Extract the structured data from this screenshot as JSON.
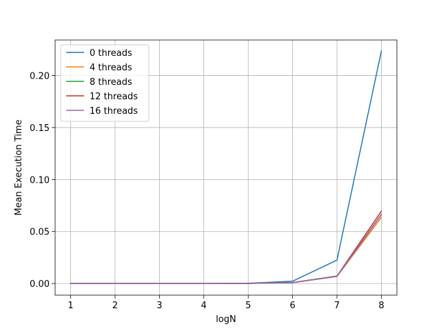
{
  "chart_data": {
    "type": "line",
    "xlabel": "logN",
    "ylabel": "Mean Execution Time",
    "xlim": [
      0.65,
      8.35
    ],
    "ylim": [
      -0.0112,
      0.2342
    ],
    "x_ticks": [
      1,
      2,
      3,
      4,
      5,
      6,
      7,
      8
    ],
    "x_tick_labels": [
      "1",
      "2",
      "3",
      "4",
      "5",
      "6",
      "7",
      "8"
    ],
    "y_ticks": [
      0.0,
      0.05,
      0.1,
      0.15,
      0.2
    ],
    "y_tick_labels": [
      "0.00",
      "0.05",
      "0.10",
      "0.15",
      "0.20"
    ],
    "grid": true,
    "legend_position": "top-left",
    "x": [
      1,
      2,
      3,
      4,
      5,
      6,
      7,
      8
    ],
    "series": [
      {
        "name": "0 threads",
        "color": "#1f77b4",
        "values": [
          0.0,
          0.0,
          0.0,
          0.0,
          0.0002,
          0.0022,
          0.0225,
          0.2235
        ]
      },
      {
        "name": "4 threads",
        "color": "#ff7f0e",
        "values": [
          0.0,
          0.0,
          0.0,
          0.0,
          0.0001,
          0.0008,
          0.0068,
          0.0635
        ]
      },
      {
        "name": "8 threads",
        "color": "#2ca02c",
        "values": [
          0.0,
          0.0,
          0.0,
          0.0,
          0.0001,
          0.0008,
          0.0068,
          0.066
        ]
      },
      {
        "name": "12 threads",
        "color": "#d62728",
        "values": [
          0.0,
          0.0,
          0.0,
          0.0,
          0.0001,
          0.0009,
          0.0072,
          0.0695
        ]
      },
      {
        "name": "16 threads",
        "color": "#9467bd",
        "values": [
          0.0,
          0.0,
          0.0,
          0.0,
          0.0001,
          0.0008,
          0.007,
          0.0665
        ]
      }
    ]
  }
}
